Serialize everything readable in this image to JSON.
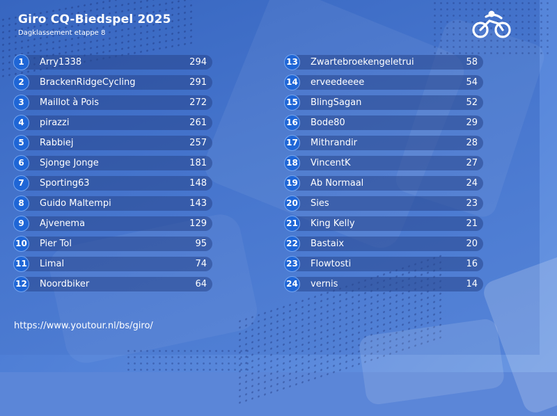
{
  "header": {
    "title": "Giro CQ-Biedspel 2025",
    "subtitle": "Dagklassement etappe 8"
  },
  "logo": {
    "icon": "cyclist-logo-icon"
  },
  "standings": {
    "left": [
      {
        "rank": "1",
        "name": "Arry1338",
        "score": "294"
      },
      {
        "rank": "2",
        "name": "BrackenRidgeCycling",
        "score": "291"
      },
      {
        "rank": "3",
        "name": "Maillot à Pois",
        "score": "272"
      },
      {
        "rank": "4",
        "name": "pirazzi",
        "score": "261"
      },
      {
        "rank": "5",
        "name": "Rabbiej",
        "score": "257"
      },
      {
        "rank": "6",
        "name": "Sjonge Jonge",
        "score": "181"
      },
      {
        "rank": "7",
        "name": "Sporting63",
        "score": "148"
      },
      {
        "rank": "8",
        "name": "Guido Maltempi",
        "score": "143"
      },
      {
        "rank": "9",
        "name": "Ajvenema",
        "score": "129"
      },
      {
        "rank": "10",
        "name": "Pier Tol",
        "score": "95"
      },
      {
        "rank": "11",
        "name": "Limal",
        "score": "74"
      },
      {
        "rank": "12",
        "name": "Noordbiker",
        "score": "64"
      }
    ],
    "right": [
      {
        "rank": "13",
        "name": "Zwartebroekengeletrui",
        "score": "58"
      },
      {
        "rank": "14",
        "name": "erveedeeee",
        "score": "54"
      },
      {
        "rank": "15",
        "name": "BlingSagan",
        "score": "52"
      },
      {
        "rank": "16",
        "name": "Bode80",
        "score": "29"
      },
      {
        "rank": "17",
        "name": "Mithrandir",
        "score": "28"
      },
      {
        "rank": "18",
        "name": "VincentK",
        "score": "27"
      },
      {
        "rank": "19",
        "name": "Ab Normaal",
        "score": "24"
      },
      {
        "rank": "20",
        "name": "Sies",
        "score": "23"
      },
      {
        "rank": "21",
        "name": "King Kelly",
        "score": "21"
      },
      {
        "rank": "22",
        "name": "Bastaix",
        "score": "20"
      },
      {
        "rank": "23",
        "name": "Flowtosti",
        "score": "16"
      },
      {
        "rank": "24",
        "name": "vernis",
        "score": "14"
      }
    ]
  },
  "footer": {
    "url": "https://www.youtour.nl/bs/giro/"
  },
  "colors": {
    "rank_badge": "#1f66d6",
    "bar": "#2c4a8e",
    "panel": "#4675cd"
  }
}
